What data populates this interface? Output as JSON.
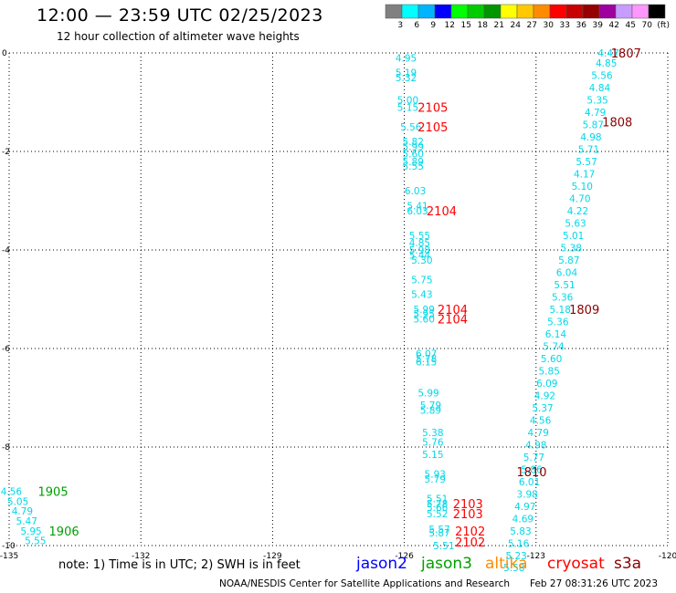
{
  "header": {
    "title": "12:00 — 23:59 UTC 02/25/2023",
    "subtitle": "12 hour collection of altimeter wave heights"
  },
  "scale": {
    "colors": [
      "#808080",
      "#00ffff",
      "#00b4ff",
      "#0000ff",
      "#00ff00",
      "#00cc00",
      "#009600",
      "#ffff00",
      "#ffc800",
      "#ff8c00",
      "#ff0000",
      "#c80000",
      "#960000",
      "#a000a0",
      "#c89bff",
      "#ff96ff",
      "#000000"
    ],
    "labels": [
      "3",
      "6",
      "9",
      "12",
      "15",
      "18",
      "21",
      "24",
      "27",
      "30",
      "33",
      "36",
      "39",
      "42",
      "45",
      "70",
      "(ft)"
    ]
  },
  "footer": {
    "note": "note: 1) Time is in UTC; 2) SWH is in feet",
    "credit": "NOAA/NESDIS Center for Satellite Applications and Research",
    "timestamp": "Feb 27 08:31:26 UTC 2023"
  },
  "satellites": [
    {
      "name": "jason2",
      "color": "#0000ff"
    },
    {
      "name": "jason3",
      "color": "#00a000"
    },
    {
      "name": "altika",
      "color": "#ff8c00"
    },
    {
      "name": "cryosat",
      "color": "#ff0000"
    },
    {
      "name": "s3a",
      "color": "#8b0000"
    }
  ],
  "chart_data": {
    "type": "scatter",
    "title": "12:00 — 23:59 UTC 02/25/2023",
    "xlim": [
      -135,
      -120
    ],
    "ylim": [
      -10,
      0
    ],
    "x_ticks": [
      "-135",
      "-132",
      "-129",
      "-126",
      "-123",
      "-120"
    ],
    "y_ticks": [
      "0",
      "-2",
      "-4",
      "-6",
      "-8",
      "-10"
    ],
    "grid": true,
    "swh_points": [
      {
        "x": -125.96,
        "y": -0.1,
        "t": "4.95"
      },
      {
        "x": -125.96,
        "y": -0.4,
        "t": "5.19"
      },
      {
        "x": -125.96,
        "y": -0.5,
        "t": "5.32"
      },
      {
        "x": -125.92,
        "y": -0.95,
        "t": "5.00"
      },
      {
        "x": -125.92,
        "y": -1.1,
        "t": "5.15"
      },
      {
        "x": -125.85,
        "y": -1.5,
        "t": "5.56"
      },
      {
        "x": -125.8,
        "y": -1.8,
        "t": "5.82"
      },
      {
        "x": -125.8,
        "y": -1.9,
        "t": "5.99"
      },
      {
        "x": -125.8,
        "y": -2.05,
        "t": "5.60"
      },
      {
        "x": -125.8,
        "y": -2.2,
        "t": "5.89"
      },
      {
        "x": -125.8,
        "y": -2.3,
        "t": "5.55"
      },
      {
        "x": -125.75,
        "y": -2.8,
        "t": "6.03"
      },
      {
        "x": -125.7,
        "y": -3.1,
        "t": "5.41"
      },
      {
        "x": -125.7,
        "y": -3.2,
        "t": "6.03"
      },
      {
        "x": -125.65,
        "y": -3.7,
        "t": "5.55"
      },
      {
        "x": -125.65,
        "y": -3.85,
        "t": "4.85"
      },
      {
        "x": -125.65,
        "y": -4.0,
        "t": "5.98"
      },
      {
        "x": -125.65,
        "y": -4.1,
        "t": "5.44"
      },
      {
        "x": -125.6,
        "y": -4.2,
        "t": "5.30"
      },
      {
        "x": -125.6,
        "y": -4.6,
        "t": "5.75"
      },
      {
        "x": -125.6,
        "y": -4.9,
        "t": "5.43"
      },
      {
        "x": -125.55,
        "y": -5.2,
        "t": "5.99"
      },
      {
        "x": -125.55,
        "y": -5.3,
        "t": "5.95"
      },
      {
        "x": -125.55,
        "y": -5.4,
        "t": "5.60"
      },
      {
        "x": -125.5,
        "y": -6.1,
        "t": "6.07"
      },
      {
        "x": -125.5,
        "y": -6.2,
        "t": "5.78"
      },
      {
        "x": -125.5,
        "y": -6.27,
        "t": "6.15"
      },
      {
        "x": -125.45,
        "y": -6.9,
        "t": "5.99"
      },
      {
        "x": -125.4,
        "y": -7.15,
        "t": "5.79"
      },
      {
        "x": -125.4,
        "y": -7.25,
        "t": "5.89"
      },
      {
        "x": -125.35,
        "y": -7.7,
        "t": "5.38"
      },
      {
        "x": -125.35,
        "y": -7.9,
        "t": "5.76"
      },
      {
        "x": -125.35,
        "y": -8.15,
        "t": "5.15"
      },
      {
        "x": -125.3,
        "y": -8.55,
        "t": "5.93"
      },
      {
        "x": -125.3,
        "y": -8.65,
        "t": "5.79"
      },
      {
        "x": -125.25,
        "y": -9.05,
        "t": "5.51"
      },
      {
        "x": -125.25,
        "y": -9.15,
        "t": "5.78"
      },
      {
        "x": -125.25,
        "y": -9.22,
        "t": "5.66"
      },
      {
        "x": -125.25,
        "y": -9.35,
        "t": "5.52"
      },
      {
        "x": -125.2,
        "y": -9.67,
        "t": "5.57"
      },
      {
        "x": -125.2,
        "y": -9.74,
        "t": "5.87"
      },
      {
        "x": -125.1,
        "y": -10.0,
        "t": "5.51"
      },
      {
        "x": -121.35,
        "y": -0.0,
        "t": "4.47"
      },
      {
        "x": -121.4,
        "y": -0.2,
        "t": "4.85"
      },
      {
        "x": -121.5,
        "y": -0.45,
        "t": "5.56"
      },
      {
        "x": -121.55,
        "y": -0.7,
        "t": "4.84"
      },
      {
        "x": -121.6,
        "y": -0.95,
        "t": "5.35"
      },
      {
        "x": -121.65,
        "y": -1.2,
        "t": "4.79"
      },
      {
        "x": -121.7,
        "y": -1.45,
        "t": "5.87"
      },
      {
        "x": -121.75,
        "y": -1.7,
        "t": "4.98"
      },
      {
        "x": -121.8,
        "y": -1.95,
        "t": "5.71"
      },
      {
        "x": -121.85,
        "y": -2.2,
        "t": "5.57"
      },
      {
        "x": -121.9,
        "y": -2.45,
        "t": "4.17"
      },
      {
        "x": -121.95,
        "y": -2.7,
        "t": "5.10"
      },
      {
        "x": -122.0,
        "y": -2.95,
        "t": "4.70"
      },
      {
        "x": -122.05,
        "y": -3.2,
        "t": "4.22"
      },
      {
        "x": -122.1,
        "y": -3.45,
        "t": "5.63"
      },
      {
        "x": -122.15,
        "y": -3.7,
        "t": "5.01"
      },
      {
        "x": -122.2,
        "y": -3.95,
        "t": "5.38"
      },
      {
        "x": -122.25,
        "y": -4.2,
        "t": "5.87"
      },
      {
        "x": -122.3,
        "y": -4.45,
        "t": "6.04"
      },
      {
        "x": -122.35,
        "y": -4.7,
        "t": "5.51"
      },
      {
        "x": -122.4,
        "y": -4.95,
        "t": "5.36"
      },
      {
        "x": -122.45,
        "y": -5.2,
        "t": "5.18"
      },
      {
        "x": -122.5,
        "y": -5.45,
        "t": "5.36"
      },
      {
        "x": -122.55,
        "y": -5.7,
        "t": "6.14"
      },
      {
        "x": -122.6,
        "y": -5.95,
        "t": "5.74"
      },
      {
        "x": -122.65,
        "y": -6.2,
        "t": "5.60"
      },
      {
        "x": -122.7,
        "y": -6.45,
        "t": "5.85"
      },
      {
        "x": -122.75,
        "y": -6.7,
        "t": "6.09"
      },
      {
        "x": -122.8,
        "y": -6.95,
        "t": "4.92"
      },
      {
        "x": -122.85,
        "y": -7.2,
        "t": "5.37"
      },
      {
        "x": -122.9,
        "y": -7.45,
        "t": "4.56"
      },
      {
        "x": -122.95,
        "y": -7.7,
        "t": "4.79"
      },
      {
        "x": -123.0,
        "y": -7.95,
        "t": "4.98"
      },
      {
        "x": -123.05,
        "y": -8.2,
        "t": "5.77"
      },
      {
        "x": -123.1,
        "y": -8.45,
        "t": "5.86"
      },
      {
        "x": -123.15,
        "y": -8.7,
        "t": "6.01"
      },
      {
        "x": -123.2,
        "y": -8.95,
        "t": "3.98"
      },
      {
        "x": -123.25,
        "y": -9.2,
        "t": "4.97"
      },
      {
        "x": -123.3,
        "y": -9.45,
        "t": "4.69"
      },
      {
        "x": -123.35,
        "y": -9.7,
        "t": "5.83"
      },
      {
        "x": -123.4,
        "y": -9.95,
        "t": "5.16"
      },
      {
        "x": -123.45,
        "y": -10.2,
        "t": "5.23"
      },
      {
        "x": -123.5,
        "y": -10.45,
        "t": "5.58"
      },
      {
        "x": -134.95,
        "y": -8.9,
        "t": "4.56"
      },
      {
        "x": -134.8,
        "y": -9.1,
        "t": "5.05"
      },
      {
        "x": -134.7,
        "y": -9.3,
        "t": "4.79"
      },
      {
        "x": -134.6,
        "y": -9.5,
        "t": "5.47"
      },
      {
        "x": -134.5,
        "y": -9.7,
        "t": "5.95"
      },
      {
        "x": -134.4,
        "y": -9.9,
        "t": "5.55"
      }
    ],
    "pass_labels": [
      {
        "x": -125.35,
        "y": -1.1,
        "t": "2105",
        "sat": "cryosat"
      },
      {
        "x": -125.35,
        "y": -1.5,
        "t": "2105",
        "sat": "cryosat"
      },
      {
        "x": -125.15,
        "y": -3.2,
        "t": "2104",
        "sat": "cryosat"
      },
      {
        "x": -124.9,
        "y": -5.2,
        "t": "2104",
        "sat": "cryosat"
      },
      {
        "x": -124.9,
        "y": -5.4,
        "t": "2104",
        "sat": "cryosat"
      },
      {
        "x": -124.55,
        "y": -9.15,
        "t": "2103",
        "sat": "cryosat"
      },
      {
        "x": -124.55,
        "y": -9.35,
        "t": "2103",
        "sat": "cryosat"
      },
      {
        "x": -124.5,
        "y": -9.7,
        "t": "2102",
        "sat": "cryosat"
      },
      {
        "x": -124.5,
        "y": -10.0,
        "t": "2102",
        "sat": "cryosat"
      },
      {
        "x": -120.95,
        "y": -0.0,
        "t": "1807",
        "sat": "s3a"
      },
      {
        "x": -121.15,
        "y": -1.4,
        "t": "1808",
        "sat": "s3a"
      },
      {
        "x": -121.9,
        "y": -5.2,
        "t": "1809",
        "sat": "s3a"
      },
      {
        "x": -123.1,
        "y": -8.5,
        "t": "1810",
        "sat": "s3a"
      },
      {
        "x": -134.0,
        "y": -8.9,
        "t": "1905",
        "sat": "jason3"
      },
      {
        "x": -133.75,
        "y": -9.7,
        "t": "1906",
        "sat": "jason3"
      }
    ]
  }
}
